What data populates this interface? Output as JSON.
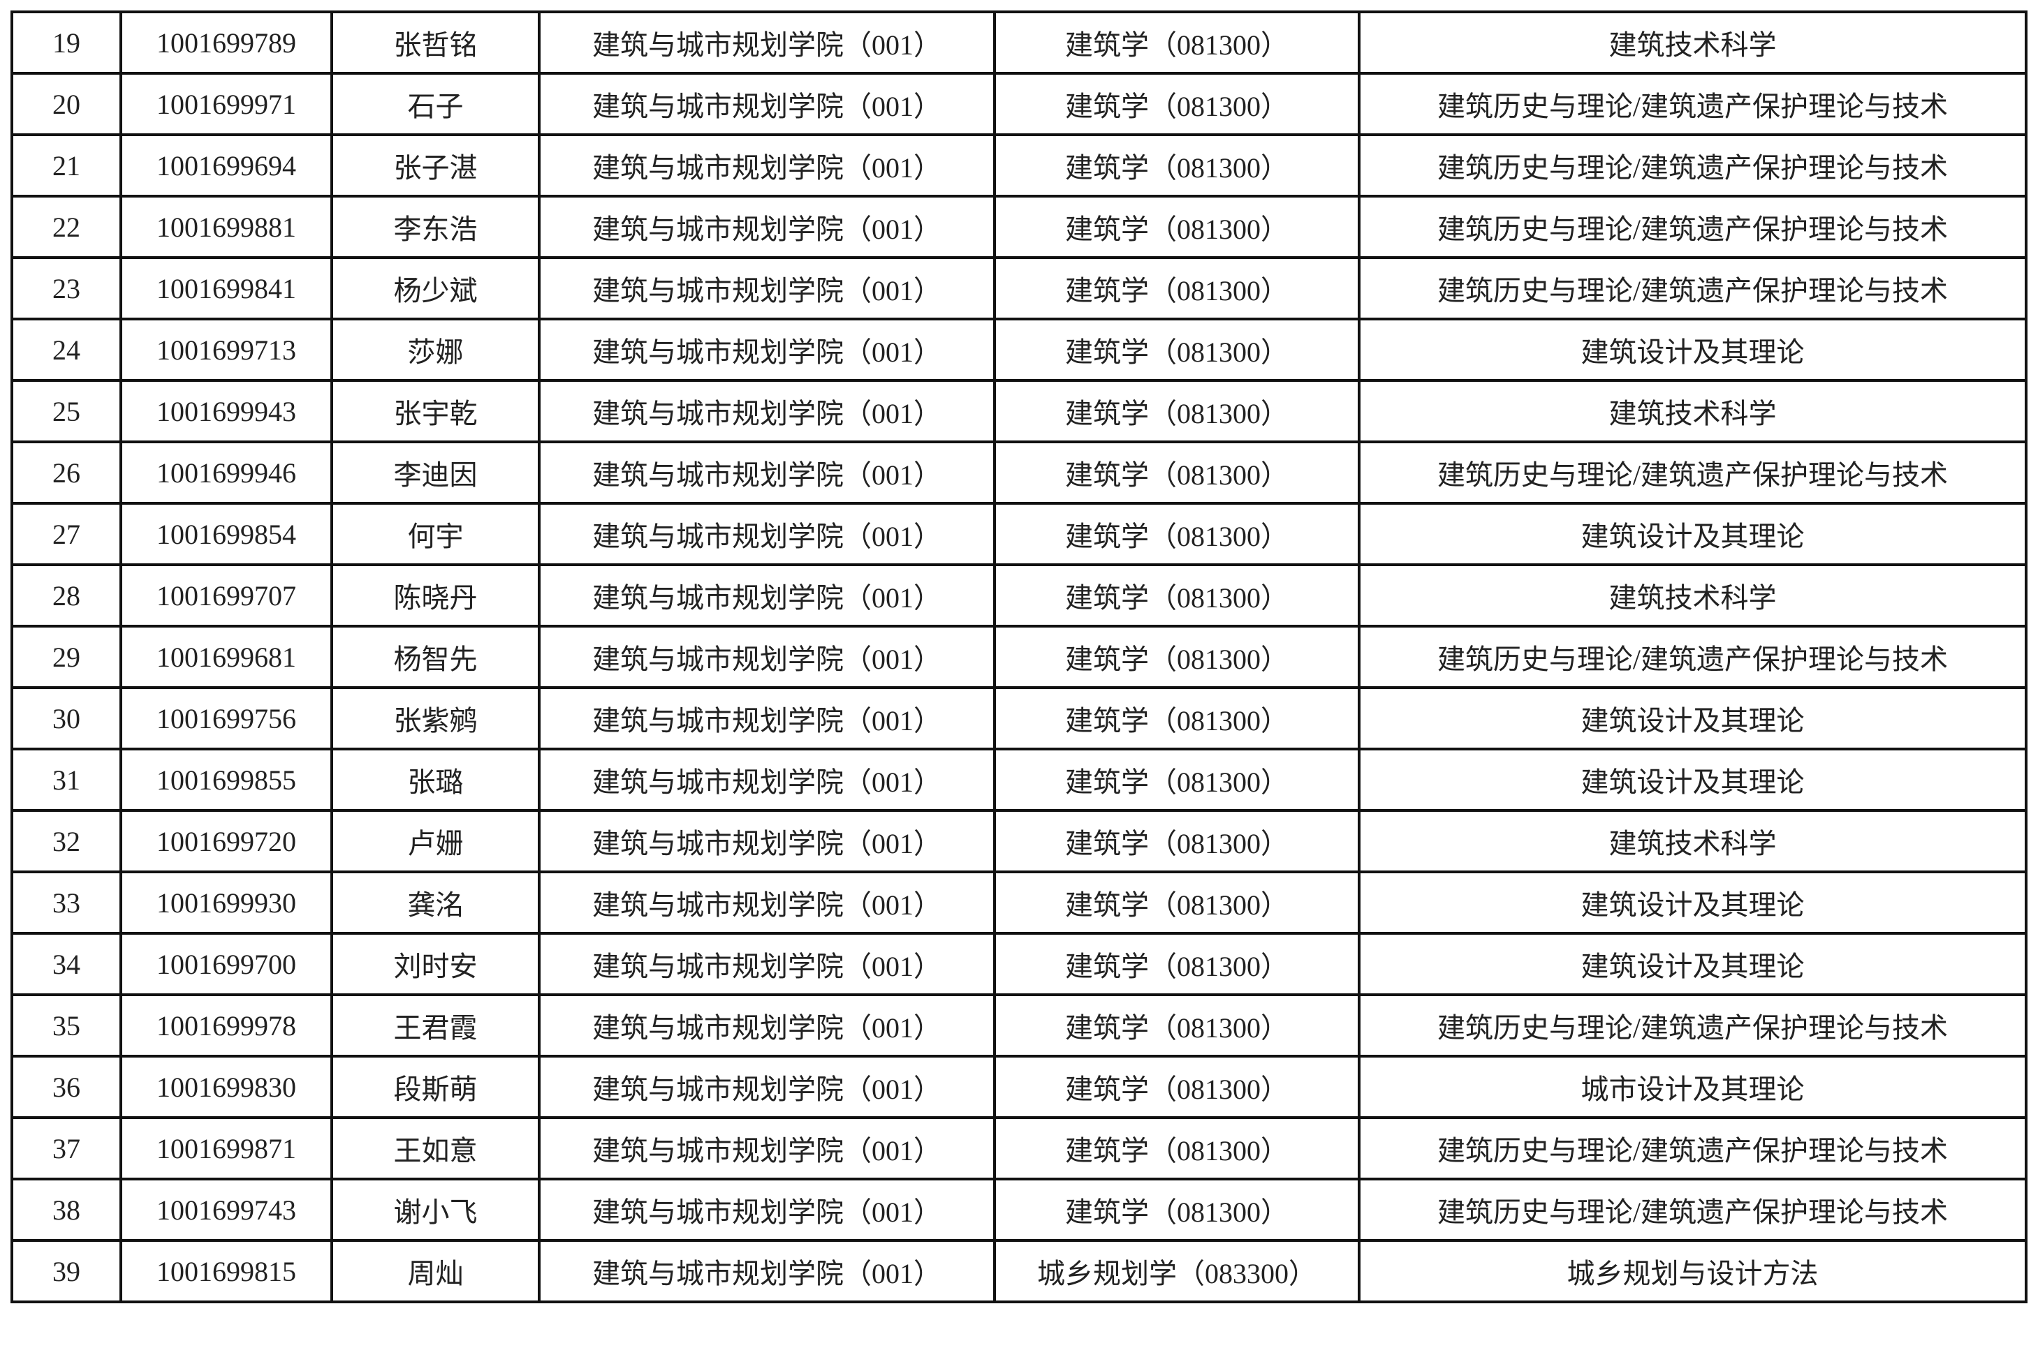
{
  "rows": [
    {
      "no": "19",
      "id": "1001699789",
      "name": "张哲铭",
      "college": "建筑与城市规划学院（001）",
      "major": "建筑学（081300）",
      "direction": "建筑技术科学"
    },
    {
      "no": "20",
      "id": "1001699971",
      "name": "石子",
      "college": "建筑与城市规划学院（001）",
      "major": "建筑学（081300）",
      "direction": "建筑历史与理论/建筑遗产保护理论与技术"
    },
    {
      "no": "21",
      "id": "1001699694",
      "name": "张子湛",
      "college": "建筑与城市规划学院（001）",
      "major": "建筑学（081300）",
      "direction": "建筑历史与理论/建筑遗产保护理论与技术"
    },
    {
      "no": "22",
      "id": "1001699881",
      "name": "李东浩",
      "college": "建筑与城市规划学院（001）",
      "major": "建筑学（081300）",
      "direction": "建筑历史与理论/建筑遗产保护理论与技术"
    },
    {
      "no": "23",
      "id": "1001699841",
      "name": "杨少斌",
      "college": "建筑与城市规划学院（001）",
      "major": "建筑学（081300）",
      "direction": "建筑历史与理论/建筑遗产保护理论与技术"
    },
    {
      "no": "24",
      "id": "1001699713",
      "name": "莎娜",
      "college": "建筑与城市规划学院（001）",
      "major": "建筑学（081300）",
      "direction": "建筑设计及其理论"
    },
    {
      "no": "25",
      "id": "1001699943",
      "name": "张宇乾",
      "college": "建筑与城市规划学院（001）",
      "major": "建筑学（081300）",
      "direction": "建筑技术科学"
    },
    {
      "no": "26",
      "id": "1001699946",
      "name": "李迪因",
      "college": "建筑与城市规划学院（001）",
      "major": "建筑学（081300）",
      "direction": "建筑历史与理论/建筑遗产保护理论与技术"
    },
    {
      "no": "27",
      "id": "1001699854",
      "name": "何宇",
      "college": "建筑与城市规划学院（001）",
      "major": "建筑学（081300）",
      "direction": "建筑设计及其理论"
    },
    {
      "no": "28",
      "id": "1001699707",
      "name": "陈晓丹",
      "college": "建筑与城市规划学院（001）",
      "major": "建筑学（081300）",
      "direction": "建筑技术科学"
    },
    {
      "no": "29",
      "id": "1001699681",
      "name": "杨智先",
      "college": "建筑与城市规划学院（001）",
      "major": "建筑学（081300）",
      "direction": "建筑历史与理论/建筑遗产保护理论与技术"
    },
    {
      "no": "30",
      "id": "1001699756",
      "name": "张紫鹓",
      "college": "建筑与城市规划学院（001）",
      "major": "建筑学（081300）",
      "direction": "建筑设计及其理论"
    },
    {
      "no": "31",
      "id": "1001699855",
      "name": "张璐",
      "college": "建筑与城市规划学院（001）",
      "major": "建筑学（081300）",
      "direction": "建筑设计及其理论"
    },
    {
      "no": "32",
      "id": "1001699720",
      "name": "卢姗",
      "college": "建筑与城市规划学院（001）",
      "major": "建筑学（081300）",
      "direction": "建筑技术科学"
    },
    {
      "no": "33",
      "id": "1001699930",
      "name": "龚洺",
      "college": "建筑与城市规划学院（001）",
      "major": "建筑学（081300）",
      "direction": "建筑设计及其理论"
    },
    {
      "no": "34",
      "id": "1001699700",
      "name": "刘时安",
      "college": "建筑与城市规划学院（001）",
      "major": "建筑学（081300）",
      "direction": "建筑设计及其理论"
    },
    {
      "no": "35",
      "id": "1001699978",
      "name": "王君霞",
      "college": "建筑与城市规划学院（001）",
      "major": "建筑学（081300）",
      "direction": "建筑历史与理论/建筑遗产保护理论与技术"
    },
    {
      "no": "36",
      "id": "1001699830",
      "name": "段斯萌",
      "college": "建筑与城市规划学院（001）",
      "major": "建筑学（081300）",
      "direction": "城市设计及其理论"
    },
    {
      "no": "37",
      "id": "1001699871",
      "name": "王如意",
      "college": "建筑与城市规划学院（001）",
      "major": "建筑学（081300）",
      "direction": "建筑历史与理论/建筑遗产保护理论与技术"
    },
    {
      "no": "38",
      "id": "1001699743",
      "name": "谢小飞",
      "college": "建筑与城市规划学院（001）",
      "major": "建筑学（081300）",
      "direction": "建筑历史与理论/建筑遗产保护理论与技术"
    },
    {
      "no": "39",
      "id": "1001699815",
      "name": "周灿",
      "college": "建筑与城市规划学院（001）",
      "major": "城乡规划学（083300）",
      "direction": "城乡规划与设计方法"
    }
  ]
}
